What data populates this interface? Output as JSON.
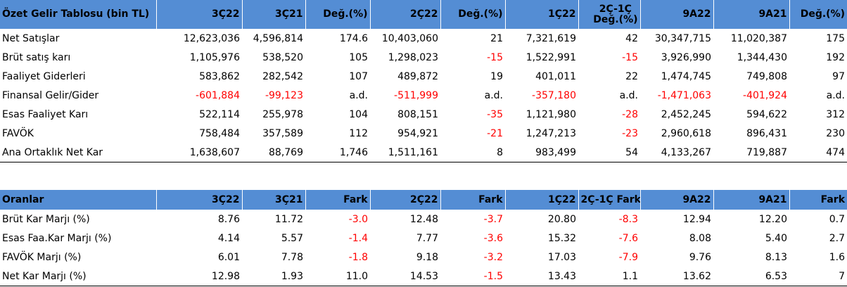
{
  "table1": {
    "headers": [
      "Özet Gelir Tablosu (bin TL)",
      "3Ç22",
      "3Ç21",
      "Değ.(%)",
      "2Ç22",
      "Değ.(%)",
      "1Ç22",
      "2Ç-1Ç\nDeğ.(%)",
      "9A22",
      "9A21",
      "Değ.(%)"
    ],
    "header_line1": "2Ç-1Ç",
    "header_line2": "Değ.(%)",
    "rows": [
      [
        "Net Satışlar",
        "12,623,036",
        "4,596,814",
        "174.6",
        "10,403,060",
        "21",
        "7,321,619",
        "42",
        "30,347,715",
        "11,020,387",
        "175"
      ],
      [
        "Brüt satış karı",
        "1,105,976",
        "538,520",
        "105",
        "1,298,023",
        "-15",
        "1,522,991",
        "-15",
        "3,926,990",
        "1,344,430",
        "192"
      ],
      [
        "Faaliyet Giderleri",
        "583,862",
        "282,542",
        "107",
        "489,872",
        "19",
        "401,011",
        "22",
        "1,474,745",
        "749,808",
        "97"
      ],
      [
        "Finansal Gelir/Gider",
        "-601,884",
        "-99,123",
        "a.d.",
        "-511,999",
        "a.d.",
        "-357,180",
        "a.d.",
        "-1,471,063",
        "-401,924",
        "a.d."
      ],
      [
        "Esas Faaliyet Karı",
        "522,114",
        "255,978",
        "104",
        "808,151",
        "-35",
        "1,121,980",
        "-28",
        "2,452,245",
        "594,622",
        "312"
      ],
      [
        "FAVÖK",
        "758,484",
        "357,589",
        "112",
        "954,921",
        "-21",
        "1,247,213",
        "-23",
        "2,960,618",
        "896,431",
        "230"
      ],
      [
        "Ana Ortaklık Net Kar",
        "1,638,607",
        "88,769",
        "1,746",
        "1,511,161",
        "8",
        "983,499",
        "54",
        "4,133,267",
        "719,887",
        "474"
      ]
    ]
  },
  "table2": {
    "headers": [
      "Oranlar",
      "3Ç22",
      "3Ç21",
      "Fark",
      "2Ç22",
      "Fark",
      "1Ç22",
      "2Ç-1Ç Fark",
      "9A22",
      "9A21",
      "Fark"
    ],
    "rows": [
      [
        "Brüt Kar Marjı (%)",
        "8.76",
        "11.72",
        "-3.0",
        "12.48",
        "-3.7",
        "20.80",
        "-8.3",
        "12.94",
        "12.20",
        "0.7"
      ],
      [
        "Esas Faa.Kar Marjı (%)",
        "4.14",
        "5.57",
        "-1.4",
        "7.77",
        "-3.6",
        "15.32",
        "-7.6",
        "8.08",
        "5.40",
        "2.7"
      ],
      [
        "FAVÖK Marjı (%)",
        "6.01",
        "7.78",
        "-1.8",
        "9.18",
        "-3.2",
        "17.03",
        "-7.9",
        "9.76",
        "8.13",
        "1.6"
      ],
      [
        "Net Kar Marjı (%)",
        "12.98",
        "1.93",
        "11.0",
        "14.53",
        "-1.5",
        "13.43",
        "1.1",
        "13.62",
        "6.53",
        "7"
      ]
    ]
  },
  "colors": {
    "header_bg": "#548dd4",
    "negative": "#ff0000"
  }
}
